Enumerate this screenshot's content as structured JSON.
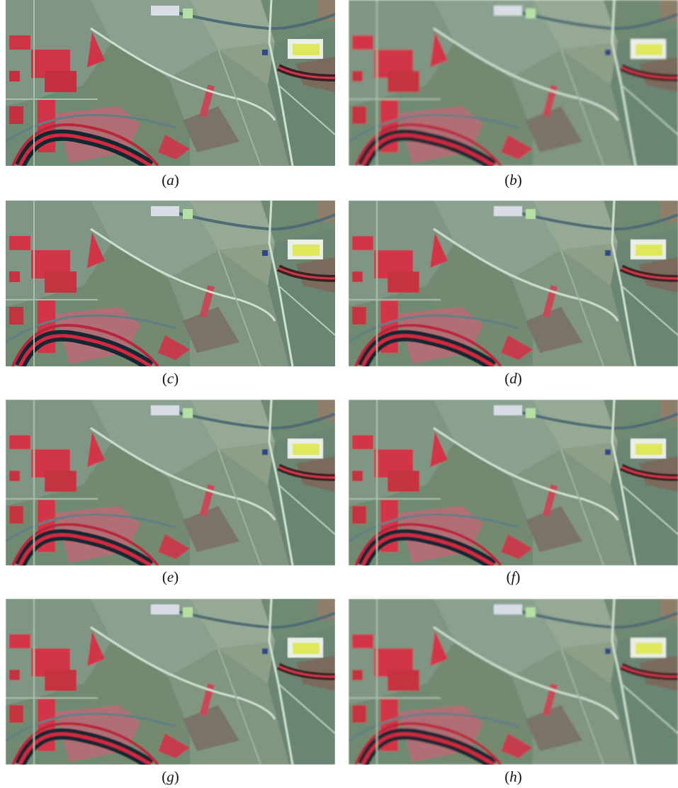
{
  "panels": [
    {
      "letter": "a",
      "blur": 0
    },
    {
      "letter": "b",
      "blur": 1.4
    },
    {
      "letter": "c",
      "blur": 0.3
    },
    {
      "letter": "d",
      "blur": 0.6
    },
    {
      "letter": "e",
      "blur": 0.5
    },
    {
      "letter": "f",
      "blur": 0.9
    },
    {
      "letter": "g",
      "blur": 0.7
    },
    {
      "letter": "h",
      "blur": 1.0
    }
  ],
  "colors": {
    "field_green": "#6f8a72",
    "field_light": "#8fa392",
    "crop_red": "#d23447",
    "river_dark": "#122831",
    "road_light": "#cfe0d2",
    "pool_yellow": "#dfe85a"
  }
}
